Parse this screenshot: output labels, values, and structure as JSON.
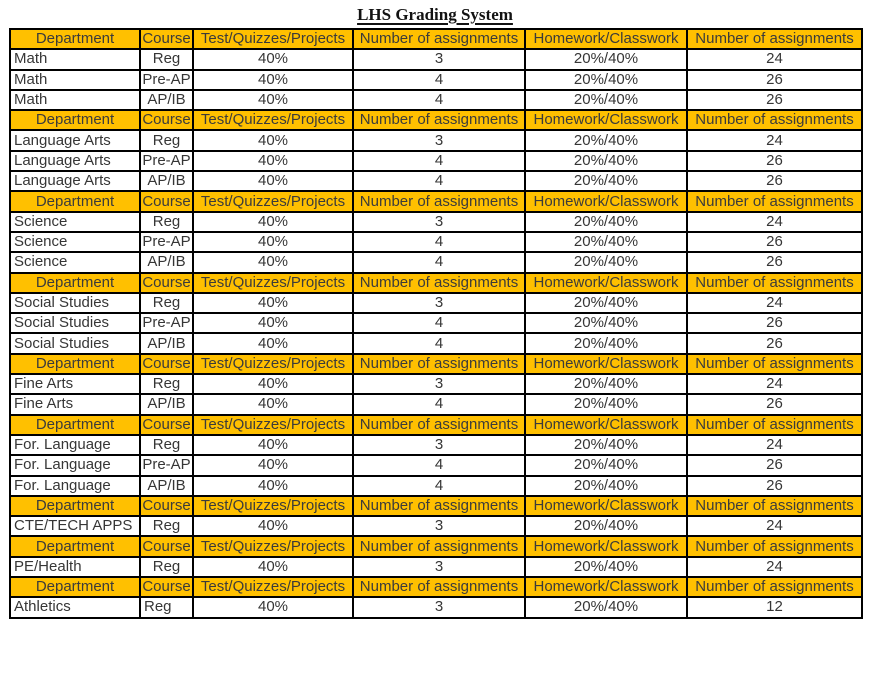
{
  "page_title": "LHS Grading System",
  "table": {
    "columns": [
      "Department",
      "Course",
      "Test/Quizzes/Projects",
      "Number of assignments",
      "Homework/Classwork",
      "Number of assignments"
    ],
    "header_bg": "#FFC000",
    "header_text_color": "#3b3b3b",
    "body_text_color": "#363636",
    "sections": [
      {
        "rows": [
          {
            "cells": [
              "Math",
              "Reg",
              "40%",
              "3",
              "20%/40%",
              "24"
            ]
          },
          {
            "cells": [
              "Math",
              "Pre-AP",
              "40%",
              "4",
              "20%/40%",
              "26"
            ]
          },
          {
            "cells": [
              "Math",
              "AP/IB",
              "40%",
              "4",
              "20%/40%",
              "26"
            ]
          }
        ]
      },
      {
        "rows": [
          {
            "cells": [
              "Language Arts",
              "Reg",
              "40%",
              "3",
              "20%/40%",
              "24"
            ]
          },
          {
            "cells": [
              "Language Arts",
              "Pre-AP",
              "40%",
              "4",
              "20%/40%",
              "26"
            ]
          },
          {
            "cells": [
              "Language Arts",
              "AP/IB",
              "40%",
              "4",
              "20%/40%",
              "26"
            ]
          }
        ]
      },
      {
        "rows": [
          {
            "cells": [
              "Science",
              "Reg",
              "40%",
              "3",
              "20%/40%",
              "24"
            ]
          },
          {
            "cells": [
              "Science",
              "Pre-AP",
              "40%",
              "4",
              "20%/40%",
              "26"
            ]
          },
          {
            "cells": [
              "Science",
              "AP/IB",
              "40%",
              "4",
              "20%/40%",
              "26"
            ]
          }
        ]
      },
      {
        "rows": [
          {
            "cells": [
              "Social Studies",
              "Reg",
              "40%",
              "3",
              "20%/40%",
              "24"
            ]
          },
          {
            "cells": [
              "Social Studies",
              "Pre-AP",
              "40%",
              "4",
              "20%/40%",
              "26"
            ]
          },
          {
            "cells": [
              "Social Studies",
              "AP/IB",
              "40%",
              "4",
              "20%/40%",
              "26"
            ]
          }
        ]
      },
      {
        "rows": [
          {
            "cells": [
              "Fine Arts",
              "Reg",
              "40%",
              "3",
              "20%/40%",
              "24"
            ]
          },
          {
            "cells": [
              "Fine Arts",
              "AP/IB",
              "40%",
              "4",
              "20%/40%",
              "26"
            ]
          }
        ]
      },
      {
        "rows": [
          {
            "cells": [
              "For. Language",
              "Reg",
              "40%",
              "3",
              "20%/40%",
              "24"
            ]
          },
          {
            "cells": [
              "For. Language",
              "Pre-AP",
              "40%",
              "4",
              "20%/40%",
              "26"
            ]
          },
          {
            "cells": [
              "For. Language",
              "AP/IB",
              "40%",
              "4",
              "20%/40%",
              "26"
            ]
          }
        ]
      },
      {
        "rows": [
          {
            "cells": [
              "CTE/TECH APPS",
              "Reg",
              "40%",
              "3",
              "20%/40%",
              "24"
            ]
          }
        ]
      },
      {
        "rows": [
          {
            "cells": [
              "PE/Health",
              "Reg",
              "40%",
              "3",
              "20%/40%",
              "24"
            ]
          }
        ]
      },
      {
        "rows": [
          {
            "cells": [
              "Athletics",
              "Reg",
              "40%",
              "3",
              "20%/40%",
              "12"
            ],
            "course_align": "left"
          }
        ]
      }
    ]
  }
}
